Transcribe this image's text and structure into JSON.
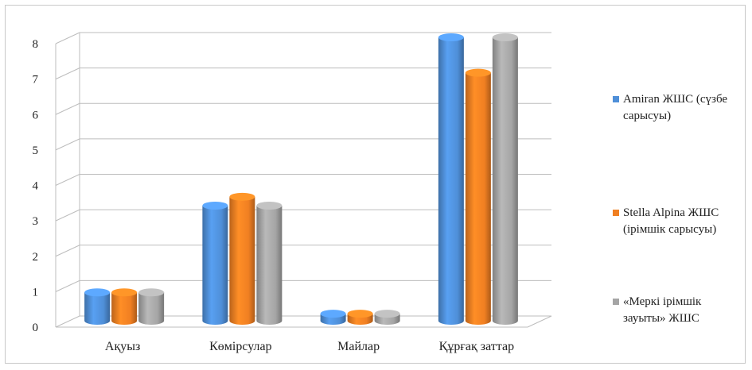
{
  "chart_data": {
    "type": "bar",
    "categories": [
      "Ақуыз",
      "Көмірсулар",
      "Майлар",
      "Құрғақ заттар"
    ],
    "series": [
      {
        "name": "Amiran ЖШС (сүзбе сарысуы)",
        "values": [
          0.8,
          3.25,
          0.2,
          8.0
        ],
        "color": "#4f8fd8"
      },
      {
        "name": "Stella Alpina ЖШС (ірімшік сарысуы)",
        "values": [
          0.8,
          3.5,
          0.2,
          7.0
        ],
        "color": "#f07f22"
      },
      {
        "name": "«Меркі ірімшік зауыты» ЖШС",
        "values": [
          0.8,
          3.25,
          0.2,
          8.0
        ],
        "color": "#a5a5a5"
      }
    ],
    "yticks": [
      "0",
      "1",
      "2",
      "3",
      "4",
      "5",
      "6",
      "7",
      "8"
    ],
    "ylim": [
      0,
      8
    ],
    "grid": true,
    "legend_position": "right"
  }
}
